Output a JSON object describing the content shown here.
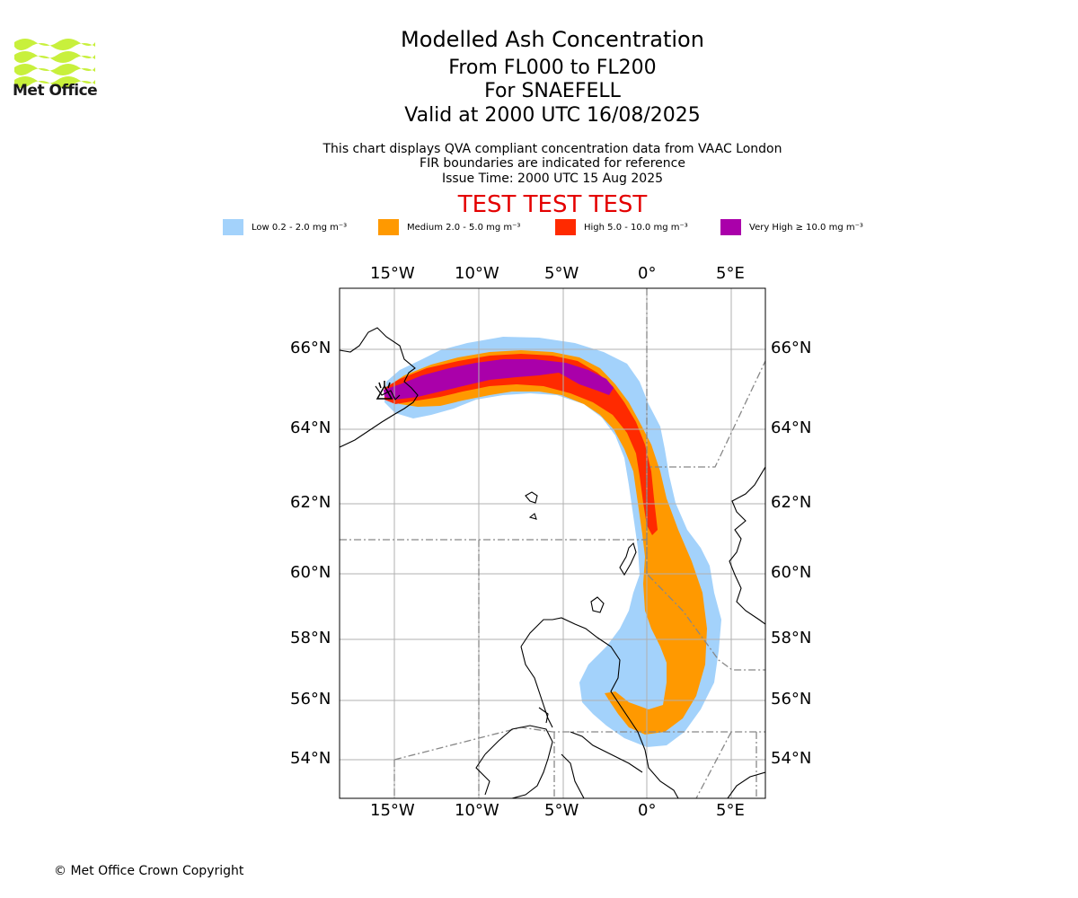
{
  "logo": {
    "text": "Met Office",
    "color": "#c8f03c"
  },
  "header": {
    "title": "Modelled Ash Concentration",
    "levels": "From FL000 to FL200",
    "volcano": "For SNAEFELL",
    "valid": "Valid at 2000 UTC 16/08/2025"
  },
  "notes": [
    "This chart displays QVA compliant concentration data from VAAC London",
    "FIR boundaries are indicated for reference",
    "Issue Time: 2000 UTC 15 Aug 2025"
  ],
  "test_banner": "TEST TEST TEST",
  "legend": [
    {
      "label": "Low 0.2 - 2.0 mg m⁻³",
      "color": "#a3d2fb"
    },
    {
      "label": "Medium 2.0 - 5.0 mg m⁻³",
      "color": "#ff9900"
    },
    {
      "label": "High 5.0 - 10.0 mg m⁻³",
      "color": "#ff2a00"
    },
    {
      "label": "Very High  ≥  10.0 mg m⁻³",
      "color": "#aa00aa"
    }
  ],
  "map": {
    "lon_labels": [
      "15°W",
      "10°W",
      "5°W",
      "0°",
      "5°E"
    ],
    "lat_labels": [
      "66°N",
      "64°N",
      "62°N",
      "60°N",
      "58°N",
      "56°N",
      "54°N"
    ]
  },
  "copyright": "© Met Office Crown Copyright"
}
